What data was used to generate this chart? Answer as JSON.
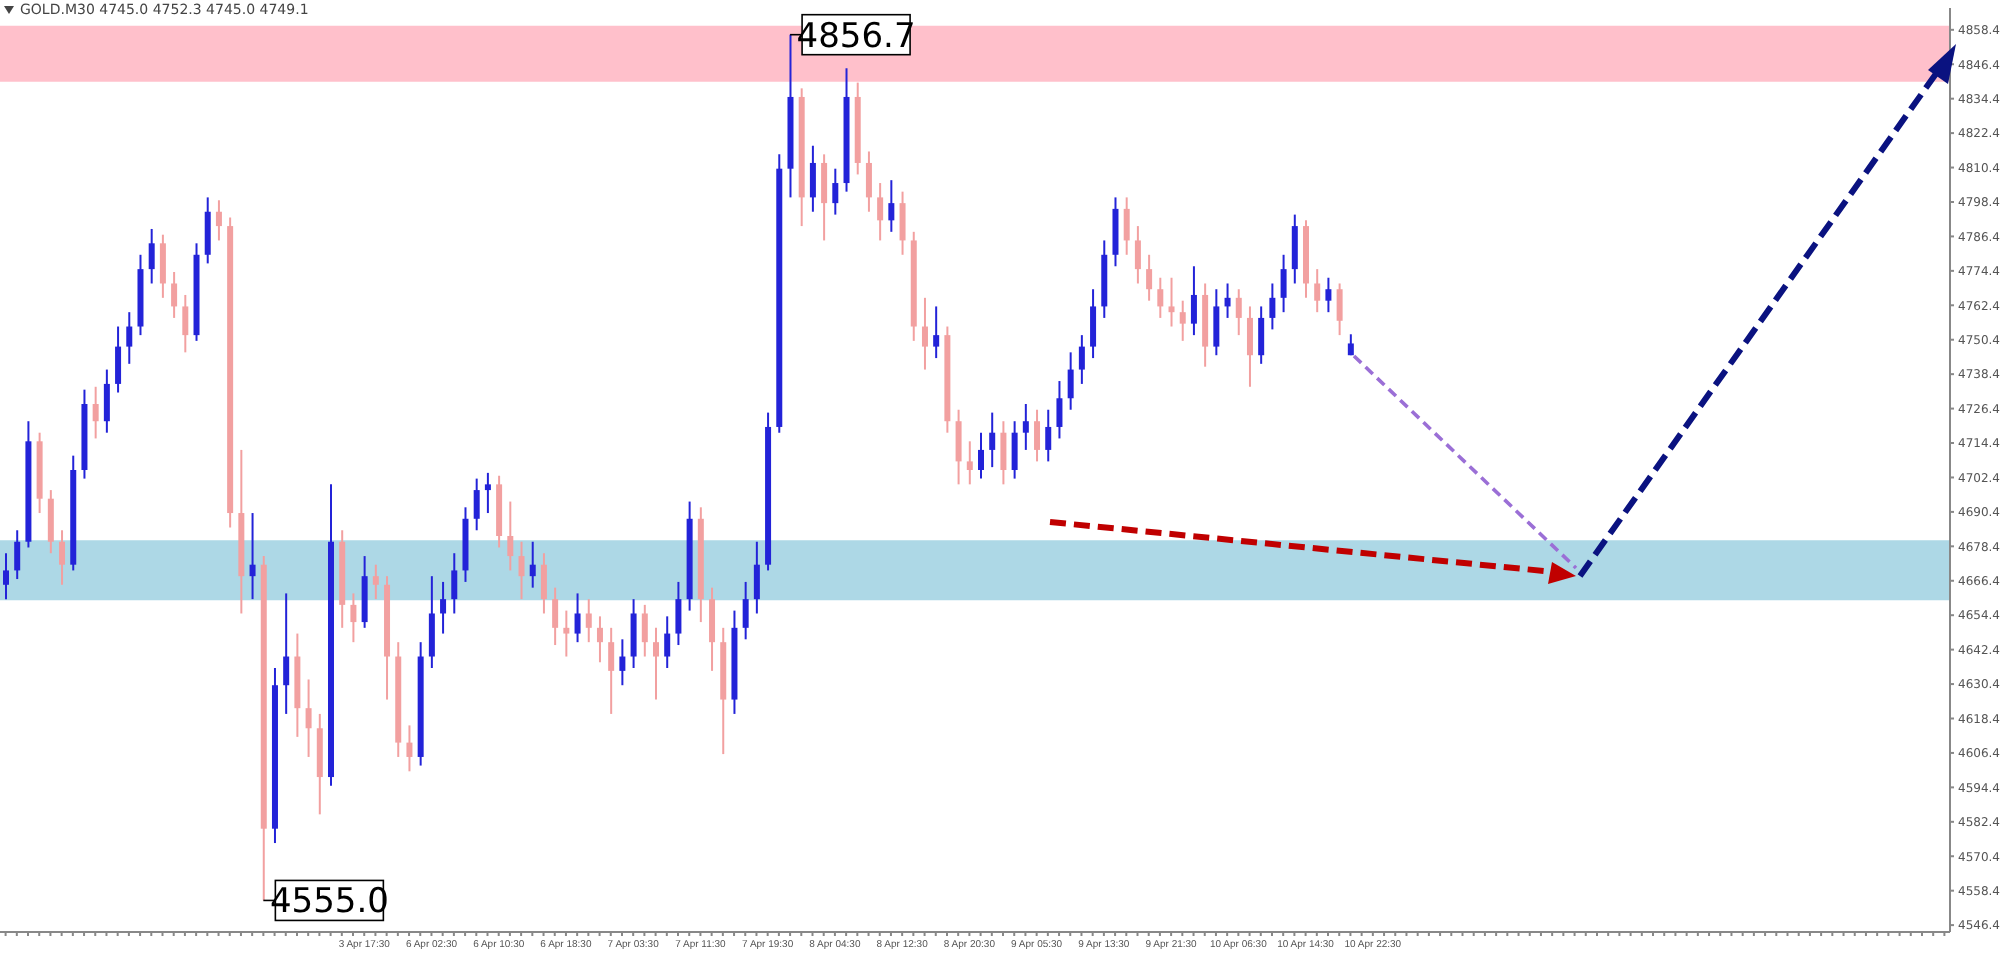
{
  "chart_data": {
    "type": "candlestick",
    "title": "GOLD.M30  4745.0 4752.3 4745.0 4749.1",
    "categories": [
      null,
      null,
      null,
      null,
      null,
      null,
      null,
      null,
      null,
      null,
      null,
      null,
      null,
      null,
      null,
      null,
      null,
      null,
      null,
      null,
      null,
      null,
      null,
      null,
      null,
      null,
      null,
      null,
      null,
      null,
      null,
      null,
      "3 Apr 17:30",
      null,
      null,
      null,
      null,
      null,
      "6 Apr 02:30",
      null,
      null,
      null,
      null,
      null,
      "6 Apr 10:30",
      null,
      null,
      null,
      null,
      null,
      "6 Apr 18:30",
      null,
      null,
      null,
      null,
      null,
      "7 Apr 03:30",
      null,
      null,
      null,
      null,
      null,
      "7 Apr 11:30",
      null,
      null,
      null,
      null,
      null,
      "7 Apr 19:30",
      null,
      null,
      null,
      null,
      null,
      "8 Apr 04:30",
      null,
      null,
      null,
      null,
      null,
      "8 Apr 12:30",
      null,
      null,
      null,
      null,
      null,
      "8 Apr 20:30",
      null,
      null,
      null,
      null,
      null,
      "9 Apr 05:30",
      null,
      null,
      null,
      null,
      null,
      "9 Apr 13:30",
      null,
      null,
      null,
      null,
      null,
      "9 Apr 21:30",
      null,
      null,
      null,
      null,
      null,
      "10 Apr 06:30",
      null,
      null,
      null,
      null,
      null,
      "10 Apr 14:30",
      null,
      null,
      null,
      null,
      null,
      "10 Apr 22:30",
      null,
      null,
      null,
      null,
      null,
      null,
      null,
      null,
      null,
      null,
      null,
      null,
      null,
      null,
      null,
      null,
      null,
      null,
      null,
      null,
      null,
      null,
      null,
      null,
      null,
      null,
      null,
      null,
      null,
      null,
      null,
      null,
      null,
      null,
      null,
      null,
      null,
      null,
      null,
      null,
      null,
      null,
      null,
      null,
      null,
      null,
      null,
      null,
      null,
      null,
      null
    ],
    "ohlc": [
      [
        4665,
        4676,
        4660,
        4670
      ],
      [
        4670,
        4684,
        4667,
        4680
      ],
      [
        4680,
        4722,
        4678,
        4715
      ],
      [
        4715,
        4718,
        4690,
        4695
      ],
      [
        4695,
        4698,
        4676,
        4680
      ],
      [
        4680,
        4684,
        4665,
        4672
      ],
      [
        4672,
        4710,
        4670,
        4705
      ],
      [
        4705,
        4733,
        4702,
        4728
      ],
      [
        4728,
        4734,
        4716,
        4722
      ],
      [
        4722,
        4740,
        4718,
        4735
      ],
      [
        4735,
        4755,
        4732,
        4748
      ],
      [
        4748,
        4760,
        4742,
        4755
      ],
      [
        4755,
        4780,
        4752,
        4775
      ],
      [
        4775,
        4789,
        4770,
        4784
      ],
      [
        4784,
        4787,
        4765,
        4770
      ],
      [
        4770,
        4774,
        4758,
        4762
      ],
      [
        4762,
        4766,
        4746,
        4752
      ],
      [
        4752,
        4784,
        4750,
        4780
      ],
      [
        4780,
        4800,
        4777,
        4795
      ],
      [
        4795,
        4799,
        4785,
        4790
      ],
      [
        4790,
        4793,
        4685,
        4690
      ],
      [
        4690,
        4712,
        4655,
        4668
      ],
      [
        4668,
        4690,
        4660,
        4672
      ],
      [
        4672,
        4675,
        4555,
        4580
      ],
      [
        4580,
        4636,
        4575,
        4630
      ],
      [
        4630,
        4662,
        4620,
        4640
      ],
      [
        4640,
        4648,
        4612,
        4622
      ],
      [
        4622,
        4632,
        4605,
        4615
      ],
      [
        4615,
        4620,
        4585,
        4598
      ],
      [
        4598,
        4700,
        4595,
        4680
      ],
      [
        4680,
        4684,
        4650,
        4658
      ],
      [
        4658,
        4662,
        4645,
        4652
      ],
      [
        4652,
        4675,
        4650,
        4668
      ],
      [
        4668,
        4672,
        4660,
        4665
      ],
      [
        4665,
        4668,
        4625,
        4640
      ],
      [
        4640,
        4645,
        4605,
        4610
      ],
      [
        4610,
        4616,
        4600,
        4605
      ],
      [
        4605,
        4645,
        4602,
        4640
      ],
      [
        4640,
        4668,
        4636,
        4655
      ],
      [
        4655,
        4666,
        4648,
        4660
      ],
      [
        4660,
        4676,
        4655,
        4670
      ],
      [
        4670,
        4692,
        4666,
        4688
      ],
      [
        4688,
        4702,
        4684,
        4698
      ],
      [
        4698,
        4704,
        4690,
        4700
      ],
      [
        4700,
        4703,
        4678,
        4682
      ],
      [
        4682,
        4694,
        4670,
        4675
      ],
      [
        4675,
        4680,
        4660,
        4668
      ],
      [
        4668,
        4680,
        4664,
        4672
      ],
      [
        4672,
        4676,
        4655,
        4660
      ],
      [
        4660,
        4664,
        4644,
        4650
      ],
      [
        4650,
        4656,
        4640,
        4648
      ],
      [
        4648,
        4662,
        4645,
        4655
      ],
      [
        4655,
        4660,
        4645,
        4650
      ],
      [
        4650,
        4654,
        4638,
        4645
      ],
      [
        4645,
        4650,
        4620,
        4635
      ],
      [
        4635,
        4646,
        4630,
        4640
      ],
      [
        4640,
        4660,
        4636,
        4655
      ],
      [
        4655,
        4658,
        4640,
        4645
      ],
      [
        4645,
        4650,
        4625,
        4640
      ],
      [
        4640,
        4654,
        4636,
        4648
      ],
      [
        4648,
        4666,
        4644,
        4660
      ],
      [
        4660,
        4694,
        4656,
        4688
      ],
      [
        4688,
        4692,
        4652,
        4660
      ],
      [
        4660,
        4664,
        4635,
        4645
      ],
      [
        4645,
        4650,
        4606,
        4625
      ],
      [
        4625,
        4656,
        4620,
        4650
      ],
      [
        4650,
        4666,
        4646,
        4660
      ],
      [
        4660,
        4680,
        4655,
        4672
      ],
      [
        4672,
        4725,
        4670,
        4720
      ],
      [
        4720,
        4815,
        4718,
        4810
      ],
      [
        4810,
        4856.7,
        4800,
        4835
      ],
      [
        4835,
        4838,
        4790,
        4800
      ],
      [
        4800,
        4818,
        4795,
        4812
      ],
      [
        4812,
        4815,
        4785,
        4798
      ],
      [
        4798,
        4810,
        4794,
        4805
      ],
      [
        4805,
        4845,
        4802,
        4835
      ],
      [
        4835,
        4840,
        4808,
        4812
      ],
      [
        4812,
        4816,
        4795,
        4800
      ],
      [
        4800,
        4805,
        4785,
        4792
      ],
      [
        4792,
        4806,
        4788,
        4798
      ],
      [
        4798,
        4802,
        4780,
        4785
      ],
      [
        4785,
        4788,
        4750,
        4755
      ],
      [
        4755,
        4765,
        4740,
        4748
      ],
      [
        4748,
        4762,
        4744,
        4752
      ],
      [
        4752,
        4755,
        4718,
        4722
      ],
      [
        4722,
        4726,
        4700,
        4708
      ],
      [
        4708,
        4715,
        4700,
        4705
      ],
      [
        4705,
        4718,
        4702,
        4712
      ],
      [
        4712,
        4725,
        4706,
        4718
      ],
      [
        4718,
        4722,
        4700,
        4705
      ],
      [
        4705,
        4722,
        4702,
        4718
      ],
      [
        4718,
        4728,
        4712,
        4722
      ],
      [
        4722,
        4726,
        4708,
        4712
      ],
      [
        4712,
        4726,
        4708,
        4720
      ],
      [
        4720,
        4736,
        4716,
        4730
      ],
      [
        4730,
        4746,
        4726,
        4740
      ],
      [
        4740,
        4752,
        4735,
        4748
      ],
      [
        4748,
        4768,
        4744,
        4762
      ],
      [
        4762,
        4785,
        4758,
        4780
      ],
      [
        4780,
        4800,
        4776,
        4796
      ],
      [
        4796,
        4800,
        4780,
        4785
      ],
      [
        4785,
        4790,
        4770,
        4775
      ],
      [
        4775,
        4780,
        4764,
        4768
      ],
      [
        4768,
        4772,
        4758,
        4762
      ],
      [
        4762,
        4772,
        4755,
        4760
      ],
      [
        4760,
        4764,
        4750,
        4756
      ],
      [
        4756,
        4776,
        4752,
        4766
      ],
      [
        4766,
        4770,
        4741,
        4748
      ],
      [
        4748,
        4768,
        4745,
        4762
      ],
      [
        4762,
        4770,
        4758,
        4765
      ],
      [
        4765,
        4768,
        4752,
        4758
      ],
      [
        4758,
        4762,
        4734,
        4745
      ],
      [
        4745,
        4762,
        4742,
        4758
      ],
      [
        4758,
        4770,
        4754,
        4765
      ],
      [
        4765,
        4780,
        4760,
        4775
      ],
      [
        4775,
        4794,
        4770,
        4790
      ],
      [
        4790,
        4792,
        4765,
        4770
      ],
      [
        4770,
        4775,
        4760,
        4764
      ],
      [
        4764,
        4772,
        4760,
        4768
      ],
      [
        4768,
        4770,
        4752,
        4757
      ],
      [
        4745.0,
        4752.3,
        4745.0,
        4749.1
      ],
      null,
      null,
      null,
      null,
      null,
      null,
      null,
      null,
      null,
      null,
      null,
      null,
      null,
      null,
      null,
      null,
      null,
      null,
      null,
      null,
      null,
      null,
      null,
      null,
      null,
      null,
      null,
      null,
      null,
      null,
      null,
      null,
      null,
      null,
      null,
      null,
      null,
      null,
      null,
      null,
      null,
      null,
      null,
      null,
      null,
      null,
      null,
      null,
      null,
      null,
      null,
      null,
      null
    ],
    "colors": [
      "#2323d8",
      "#2323d8",
      "#2323d8",
      "#f2a0a0",
      "#f2a0a0",
      "#f2a0a0",
      "#2323d8",
      "#2323d8",
      "#f2a0a0",
      "#2323d8",
      "#2323d8",
      "#2323d8",
      "#2323d8",
      "#2323d8",
      "#f2a0a0",
      "#f2a0a0",
      "#f2a0a0",
      "#2323d8",
      "#2323d8",
      "#f2a0a0",
      "#f2a0a0",
      "#f2a0a0",
      "#2323d8",
      "#f2a0a0",
      "#2323d8",
      "#2323d8",
      "#f2a0a0",
      "#f2a0a0",
      "#f2a0a0",
      "#2323d8",
      "#f2a0a0",
      "#f2a0a0",
      "#2323d8",
      "#f2a0a0",
      "#f2a0a0",
      "#f2a0a0",
      "#f2a0a0",
      "#2323d8",
      "#2323d8",
      "#2323d8",
      "#2323d8",
      "#2323d8",
      "#2323d8",
      "#2323d8",
      "#f2a0a0",
      "#f2a0a0",
      "#f2a0a0",
      "#2323d8",
      "#f2a0a0",
      "#f2a0a0",
      "#f2a0a0",
      "#2323d8",
      "#f2a0a0",
      "#f2a0a0",
      "#f2a0a0",
      "#2323d8",
      "#2323d8",
      "#f2a0a0",
      "#f2a0a0",
      "#2323d8",
      "#2323d8",
      "#2323d8",
      "#f2a0a0",
      "#f2a0a0",
      "#f2a0a0",
      "#2323d8",
      "#2323d8",
      "#2323d8",
      "#2323d8",
      "#2323d8",
      "#2323d8",
      "#f2a0a0",
      "#2323d8",
      "#f2a0a0",
      "#2323d8",
      "#2323d8",
      "#f2a0a0",
      "#f2a0a0",
      "#f2a0a0",
      "#2323d8",
      "#f2a0a0",
      "#f2a0a0",
      "#f2a0a0",
      "#2323d8",
      "#f2a0a0",
      "#f2a0a0",
      "#f2a0a0",
      "#2323d8",
      "#2323d8",
      "#f2a0a0",
      "#2323d8",
      "#2323d8",
      "#f2a0a0",
      "#2323d8",
      "#2323d8",
      "#2323d8",
      "#2323d8",
      "#2323d8",
      "#2323d8",
      "#2323d8",
      "#f2a0a0",
      "#f2a0a0",
      "#f2a0a0",
      "#f2a0a0",
      "#f2a0a0",
      "#f2a0a0",
      "#2323d8",
      "#f2a0a0",
      "#2323d8",
      "#2323d8",
      "#f2a0a0",
      "#f2a0a0",
      "#2323d8",
      "#2323d8",
      "#2323d8",
      "#2323d8",
      "#f2a0a0",
      "#f2a0a0",
      "#2323d8",
      "#f2a0a0",
      "#2323d8",
      null,
      null,
      null,
      null,
      null,
      null,
      null,
      null,
      null,
      null,
      null,
      null,
      null,
      null,
      null,
      null,
      null,
      null,
      null,
      null,
      null,
      null,
      null,
      null,
      null,
      null,
      null,
      null,
      null,
      null,
      null,
      null,
      null,
      null,
      null,
      null,
      null,
      null,
      null,
      null,
      null,
      null,
      null,
      null,
      null,
      null,
      null,
      null,
      null,
      null,
      null,
      null,
      null
    ],
    "ylim": [
      4544,
      4866
    ],
    "yticks": [
      4546.4,
      4558.4,
      4570.4,
      4582.4,
      4594.4,
      4606.4,
      4618.4,
      4630.4,
      4642.4,
      4654.4,
      4666.4,
      4678.4,
      4690.4,
      4702.4,
      4714.4,
      4726.4,
      4738.4,
      4750.4,
      4762.4,
      4774.4,
      4786.4,
      4798.4,
      4810.4,
      4822.4,
      4834.4,
      4846.4,
      4858.4
    ],
    "bands": [
      {
        "axis": "y",
        "from": 4840.3,
        "to": 4859.8,
        "color": "#ffc0cb"
      },
      {
        "axis": "y",
        "from": 4659.6,
        "to": 4680.5,
        "color": "#add8e6"
      }
    ],
    "annotations": [
      {
        "text": "4856.7",
        "y": 4856.7
      },
      "4555.0"
    ]
  }
}
